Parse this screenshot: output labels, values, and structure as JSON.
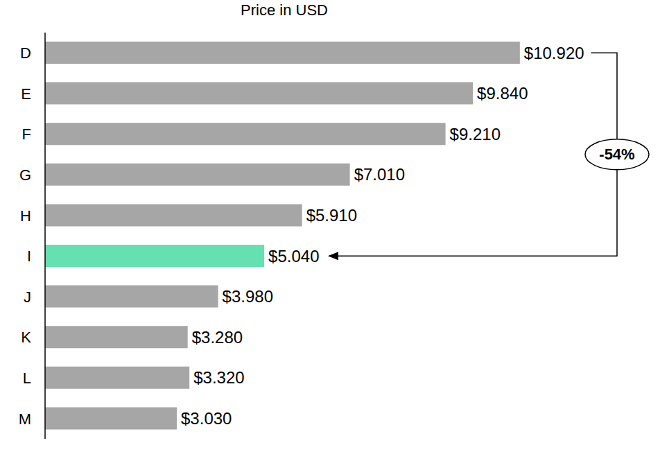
{
  "chart_data": {
    "type": "bar",
    "title": "Price in USD",
    "orientation": "horizontal",
    "categories": [
      "D",
      "E",
      "F",
      "G",
      "H",
      "I",
      "J",
      "K",
      "L",
      "M"
    ],
    "values": [
      10.92,
      9.84,
      9.21,
      7.01,
      5.91,
      5.04,
      3.98,
      3.28,
      3.32,
      3.03
    ],
    "value_labels": [
      "$10.920",
      "$9.840",
      "$9.210",
      "$7.010",
      "$5.910",
      "$5.040",
      "$3.980",
      "$3.280",
      "$3.320",
      "$3.030"
    ],
    "colors": [
      "#a6a6a6",
      "#a6a6a6",
      "#a6a6a6",
      "#a6a6a6",
      "#a6a6a6",
      "#66e0b0",
      "#a6a6a6",
      "#a6a6a6",
      "#a6a6a6",
      "#a6a6a6"
    ],
    "xlim": [
      0,
      14
    ],
    "data_labels": true,
    "tick_labels": "y",
    "grid": false,
    "annotations": [
      {
        "text": "-54%",
        "from": "D",
        "to": "I"
      }
    ]
  }
}
